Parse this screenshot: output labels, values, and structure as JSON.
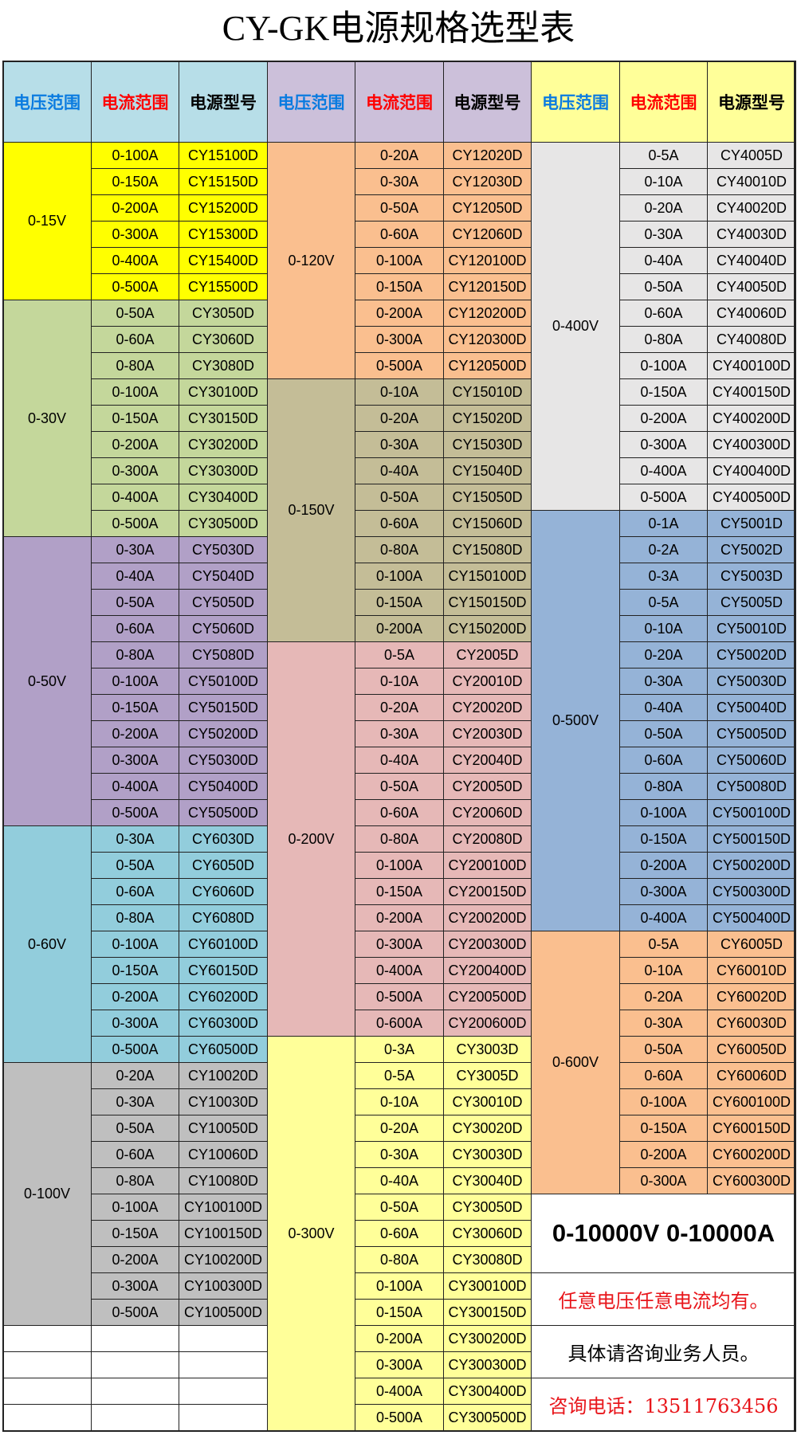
{
  "title": "CY-GK电源规格选型表",
  "headers": {
    "voltage": "电压范围",
    "current": "电流范围",
    "model": "电源型号",
    "colors": {
      "voltage": "#0a7be0",
      "current": "#ff0000",
      "model": "#000000"
    },
    "backgrounds": [
      "#b7dee8",
      "#ccc0da",
      "#ffff99"
    ]
  },
  "columns": [
    {
      "groups": [
        {
          "voltage": "0-15V",
          "color": "#ffff00",
          "rows": [
            [
              "0-100A",
              "CY15100D"
            ],
            [
              "0-150A",
              "CY15150D"
            ],
            [
              "0-200A",
              "CY15200D"
            ],
            [
              "0-300A",
              "CY15300D"
            ],
            [
              "0-400A",
              "CY15400D"
            ],
            [
              "0-500A",
              "CY15500D"
            ]
          ]
        },
        {
          "voltage": "0-30V",
          "color": "#c4d79b",
          "rows": [
            [
              "0-50A",
              "CY3050D"
            ],
            [
              "0-60A",
              "CY3060D"
            ],
            [
              "0-80A",
              "CY3080D"
            ],
            [
              "0-100A",
              "CY30100D"
            ],
            [
              "0-150A",
              "CY30150D"
            ],
            [
              "0-200A",
              "CY30200D"
            ],
            [
              "0-300A",
              "CY30300D"
            ],
            [
              "0-400A",
              "CY30400D"
            ],
            [
              "0-500A",
              "CY30500D"
            ]
          ]
        },
        {
          "voltage": "0-50V",
          "color": "#b1a0c7",
          "rows": [
            [
              "0-30A",
              "CY5030D"
            ],
            [
              "0-40A",
              "CY5040D"
            ],
            [
              "0-50A",
              "CY5050D"
            ],
            [
              "0-60A",
              "CY5060D"
            ],
            [
              "0-80A",
              "CY5080D"
            ],
            [
              "0-100A",
              "CY50100D"
            ],
            [
              "0-150A",
              "CY50150D"
            ],
            [
              "0-200A",
              "CY50200D"
            ],
            [
              "0-300A",
              "CY50300D"
            ],
            [
              "0-400A",
              "CY50400D"
            ],
            [
              "0-500A",
              "CY50500D"
            ]
          ]
        },
        {
          "voltage": "0-60V",
          "color": "#92cddc",
          "rows": [
            [
              "0-30A",
              "CY6030D"
            ],
            [
              "0-50A",
              "CY6050D"
            ],
            [
              "0-60A",
              "CY6060D"
            ],
            [
              "0-80A",
              "CY6080D"
            ],
            [
              "0-100A",
              "CY60100D"
            ],
            [
              "0-150A",
              "CY60150D"
            ],
            [
              "0-200A",
              "CY60200D"
            ],
            [
              "0-300A",
              "CY60300D"
            ],
            [
              "0-500A",
              "CY60500D"
            ]
          ]
        },
        {
          "voltage": "0-100V",
          "color": "#bfbfbf",
          "rows": [
            [
              "0-20A",
              "CY10020D"
            ],
            [
              "0-30A",
              "CY10030D"
            ],
            [
              "0-50A",
              "CY10050D"
            ],
            [
              "0-60A",
              "CY10060D"
            ],
            [
              "0-80A",
              "CY10080D"
            ],
            [
              "0-100A",
              "CY100100D"
            ],
            [
              "0-150A",
              "CY100150D"
            ],
            [
              "0-200A",
              "CY100200D"
            ],
            [
              "0-300A",
              "CY100300D"
            ],
            [
              "0-500A",
              "CY100500D"
            ]
          ]
        }
      ],
      "empty_rows": 4
    },
    {
      "groups": [
        {
          "voltage": "0-120V",
          "color": "#fabf8f",
          "rows": [
            [
              "0-20A",
              "CY12020D"
            ],
            [
              "0-30A",
              "CY12030D"
            ],
            [
              "0-50A",
              "CY12050D"
            ],
            [
              "0-60A",
              "CY12060D"
            ],
            [
              "0-100A",
              "CY120100D"
            ],
            [
              "0-150A",
              "CY120150D"
            ],
            [
              "0-200A",
              "CY120200D"
            ],
            [
              "0-300A",
              "CY120300D"
            ],
            [
              "0-500A",
              "CY120500D"
            ]
          ]
        },
        {
          "voltage": "0-150V",
          "color": "#c4bd97",
          "rows": [
            [
              "0-10A",
              "CY15010D"
            ],
            [
              "0-20A",
              "CY15020D"
            ],
            [
              "0-30A",
              "CY15030D"
            ],
            [
              "0-40A",
              "CY15040D"
            ],
            [
              "0-50A",
              "CY15050D"
            ],
            [
              "0-60A",
              "CY15060D"
            ],
            [
              "0-80A",
              "CY15080D"
            ],
            [
              "0-100A",
              "CY150100D"
            ],
            [
              "0-150A",
              "CY150150D"
            ],
            [
              "0-200A",
              "CY150200D"
            ]
          ]
        },
        {
          "voltage": "0-200V",
          "color": "#e6b8b7",
          "rows": [
            [
              "0-5A",
              "CY2005D"
            ],
            [
              "0-10A",
              "CY20010D"
            ],
            [
              "0-20A",
              "CY20020D"
            ],
            [
              "0-30A",
              "CY20030D"
            ],
            [
              "0-40A",
              "CY20040D"
            ],
            [
              "0-50A",
              "CY20050D"
            ],
            [
              "0-60A",
              "CY20060D"
            ],
            [
              "0-80A",
              "CY20080D"
            ],
            [
              "0-100A",
              "CY200100D"
            ],
            [
              "0-150A",
              "CY200150D"
            ],
            [
              "0-200A",
              "CY200200D"
            ],
            [
              "0-300A",
              "CY200300D"
            ],
            [
              "0-400A",
              "CY200400D"
            ],
            [
              "0-500A",
              "CY200500D"
            ],
            [
              "0-600A",
              "CY200600D"
            ]
          ]
        },
        {
          "voltage": "0-300V",
          "color": "#ffff99",
          "rows": [
            [
              "0-3A",
              "CY3003D"
            ],
            [
              "0-5A",
              "CY3005D"
            ],
            [
              "0-10A",
              "CY30010D"
            ],
            [
              "0-20A",
              "CY30020D"
            ],
            [
              "0-30A",
              "CY30030D"
            ],
            [
              "0-40A",
              "CY30040D"
            ],
            [
              "0-50A",
              "CY30050D"
            ],
            [
              "0-60A",
              "CY30060D"
            ],
            [
              "0-80A",
              "CY30080D"
            ],
            [
              "0-100A",
              "CY300100D"
            ],
            [
              "0-150A",
              "CY300150D"
            ],
            [
              "0-200A",
              "CY300200D"
            ],
            [
              "0-300A",
              "CY300300D"
            ],
            [
              "0-400A",
              "CY300400D"
            ],
            [
              "0-500A",
              "CY300500D"
            ]
          ]
        }
      ],
      "empty_rows": 0
    },
    {
      "groups": [
        {
          "voltage": "0-400V",
          "color": "#e7e6e6",
          "rows": [
            [
              "0-5A",
              "CY4005D"
            ],
            [
              "0-10A",
              "CY40010D"
            ],
            [
              "0-20A",
              "CY40020D"
            ],
            [
              "0-30A",
              "CY40030D"
            ],
            [
              "0-40A",
              "CY40040D"
            ],
            [
              "0-50A",
              "CY40050D"
            ],
            [
              "0-60A",
              "CY40060D"
            ],
            [
              "0-80A",
              "CY40080D"
            ],
            [
              "0-100A",
              "CY400100D"
            ],
            [
              "0-150A",
              "CY400150D"
            ],
            [
              "0-200A",
              "CY400200D"
            ],
            [
              "0-300A",
              "CY400300D"
            ],
            [
              "0-400A",
              "CY400400D"
            ],
            [
              "0-500A",
              "CY400500D"
            ]
          ]
        },
        {
          "voltage": "0-500V",
          "color": "#95b3d7",
          "rows": [
            [
              "0-1A",
              "CY5001D"
            ],
            [
              "0-2A",
              "CY5002D"
            ],
            [
              "0-3A",
              "CY5003D"
            ],
            [
              "0-5A",
              "CY5005D"
            ],
            [
              "0-10A",
              "CY50010D"
            ],
            [
              "0-20A",
              "CY50020D"
            ],
            [
              "0-30A",
              "CY50030D"
            ],
            [
              "0-40A",
              "CY50040D"
            ],
            [
              "0-50A",
              "CY50050D"
            ],
            [
              "0-60A",
              "CY50060D"
            ],
            [
              "0-80A",
              "CY50080D"
            ],
            [
              "0-100A",
              "CY500100D"
            ],
            [
              "0-150A",
              "CY500150D"
            ],
            [
              "0-200A",
              "CY500200D"
            ],
            [
              "0-300A",
              "CY500300D"
            ],
            [
              "0-400A",
              "CY500400D"
            ]
          ]
        },
        {
          "voltage": "0-600V",
          "color": "#fabf8f",
          "rows": [
            [
              "0-5A",
              "CY6005D"
            ],
            [
              "0-10A",
              "CY60010D"
            ],
            [
              "0-20A",
              "CY60020D"
            ],
            [
              "0-30A",
              "CY60030D"
            ],
            [
              "0-50A",
              "CY60050D"
            ],
            [
              "0-60A",
              "CY60060D"
            ],
            [
              "0-100A",
              "CY600100D"
            ],
            [
              "0-150A",
              "CY600150D"
            ],
            [
              "0-200A",
              "CY600200D"
            ],
            [
              "0-300A",
              "CY600300D"
            ]
          ]
        }
      ],
      "empty_rows": 0
    }
  ],
  "info": {
    "range": "0-10000V 0-10000A",
    "any": "任意电压任意电流均有。",
    "consult": "具体请咨询业务人员。",
    "phone": "咨询电话：13511763456"
  }
}
